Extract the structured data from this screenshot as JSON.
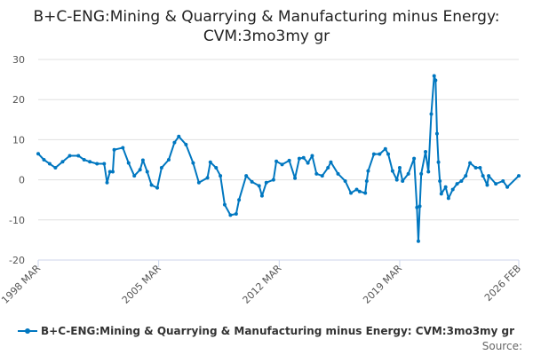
{
  "chart_data": {
    "type": "line",
    "title": "B+C-ENG:Mining & Quarrying & Manufacturing minus Energy: CVM:3mo3my gr",
    "xlabel": "",
    "ylabel": "",
    "ylim": [
      -20,
      30
    ],
    "xlim": [
      "1998-03",
      "2026-02"
    ],
    "yticks": [
      "30",
      "20",
      "10",
      "0",
      "-10",
      "-20"
    ],
    "xticks": [
      "1998 MAR",
      "2005 MAR",
      "2012 MAR",
      "2019 MAR",
      "2026 FEB"
    ],
    "grid": "horizontal",
    "legend_position": "bottom",
    "color": "#0077c0",
    "series": [
      {
        "name": "B+C-ENG:Mining & Quarrying & Manufacturing minus Energy: CVM:3mo3my gr",
        "points": [
          [
            "1998-03",
            6.5
          ],
          [
            "1998-07",
            5
          ],
          [
            "1998-11",
            4
          ],
          [
            "1999-03",
            3
          ],
          [
            "1999-08",
            4.5
          ],
          [
            "2000-01",
            6
          ],
          [
            "2000-07",
            6
          ],
          [
            "2000-11",
            5
          ],
          [
            "2001-03",
            4.5
          ],
          [
            "2001-08",
            4
          ],
          [
            "2002-01",
            4
          ],
          [
            "2002-03",
            -0.7
          ],
          [
            "2002-05",
            2
          ],
          [
            "2002-07",
            2
          ],
          [
            "2002-08",
            7.5
          ],
          [
            "2003-02",
            8
          ],
          [
            "2003-06",
            4.2
          ],
          [
            "2003-10",
            1
          ],
          [
            "2004-02",
            2.5
          ],
          [
            "2004-04",
            4.9
          ],
          [
            "2004-07",
            2
          ],
          [
            "2004-10",
            -1.3
          ],
          [
            "2005-02",
            -2
          ],
          [
            "2005-05",
            3
          ],
          [
            "2005-10",
            5
          ],
          [
            "2006-02",
            9.3
          ],
          [
            "2006-05",
            10.8
          ],
          [
            "2006-10",
            8.8
          ],
          [
            "2007-03",
            4.2
          ],
          [
            "2007-07",
            -0.7
          ],
          [
            "2008-01",
            0.5
          ],
          [
            "2008-03",
            4.4
          ],
          [
            "2008-07",
            3
          ],
          [
            "2008-10",
            1
          ],
          [
            "2009-01",
            -6.2
          ],
          [
            "2009-05",
            -8.8
          ],
          [
            "2009-09",
            -8.5
          ],
          [
            "2009-11",
            -5
          ],
          [
            "2010-04",
            1
          ],
          [
            "2010-08",
            -0.5
          ],
          [
            "2011-01",
            -1.5
          ],
          [
            "2011-03",
            -4
          ],
          [
            "2011-06",
            -0.7
          ],
          [
            "2011-11",
            0
          ],
          [
            "2012-01",
            4.6
          ],
          [
            "2012-05",
            3.8
          ],
          [
            "2012-10",
            4.8
          ],
          [
            "2013-02",
            0.4
          ],
          [
            "2013-05",
            5.3
          ],
          [
            "2013-08",
            5.5
          ],
          [
            "2013-11",
            4.2
          ],
          [
            "2014-02",
            6
          ],
          [
            "2014-05",
            1.5
          ],
          [
            "2014-09",
            1
          ],
          [
            "2015-01",
            3
          ],
          [
            "2015-03",
            4.4
          ],
          [
            "2015-08",
            1.5
          ],
          [
            "2016-01",
            -0.3
          ],
          [
            "2016-05",
            -3.3
          ],
          [
            "2016-09",
            -2.4
          ],
          [
            "2016-11",
            -2.9
          ],
          [
            "2017-03",
            -3.3
          ],
          [
            "2017-04",
            -0.3
          ],
          [
            "2017-05",
            2.2
          ],
          [
            "2017-09",
            6.4
          ],
          [
            "2018-01",
            6.4
          ],
          [
            "2018-05",
            7.7
          ],
          [
            "2018-07",
            6.4
          ],
          [
            "2018-10",
            2.2
          ],
          [
            "2019-01",
            0
          ],
          [
            "2019-03",
            3
          ],
          [
            "2019-05",
            -0.3
          ],
          [
            "2019-09",
            1.5
          ],
          [
            "2020-01",
            5.3
          ],
          [
            "2020-03",
            -6.9
          ],
          [
            "2020-04",
            -15.3
          ],
          [
            "2020-05",
            -6.6
          ],
          [
            "2020-06",
            1.5
          ],
          [
            "2020-09",
            7
          ],
          [
            "2020-11",
            2
          ],
          [
            "2021-01",
            16.4
          ],
          [
            "2021-03",
            25.9
          ],
          [
            "2021-04",
            24.8
          ],
          [
            "2021-05",
            11.5
          ],
          [
            "2021-06",
            4.4
          ],
          [
            "2021-07",
            -0.3
          ],
          [
            "2021-08",
            -3.5
          ],
          [
            "2021-11",
            -1.8
          ],
          [
            "2022-01",
            -4.6
          ],
          [
            "2022-04",
            -2.4
          ],
          [
            "2022-07",
            -1
          ],
          [
            "2022-10",
            -0.3
          ],
          [
            "2023-01",
            1
          ],
          [
            "2023-04",
            4.2
          ],
          [
            "2023-08",
            3
          ],
          [
            "2023-11",
            3
          ],
          [
            "2024-01",
            1
          ],
          [
            "2024-04",
            -1.3
          ],
          [
            "2024-05",
            1
          ],
          [
            "2024-10",
            -1
          ],
          [
            "2025-03",
            -0.3
          ],
          [
            "2025-06",
            -1.8
          ],
          [
            "2026-02",
            1
          ]
        ]
      }
    ]
  },
  "source_label": "Source:"
}
